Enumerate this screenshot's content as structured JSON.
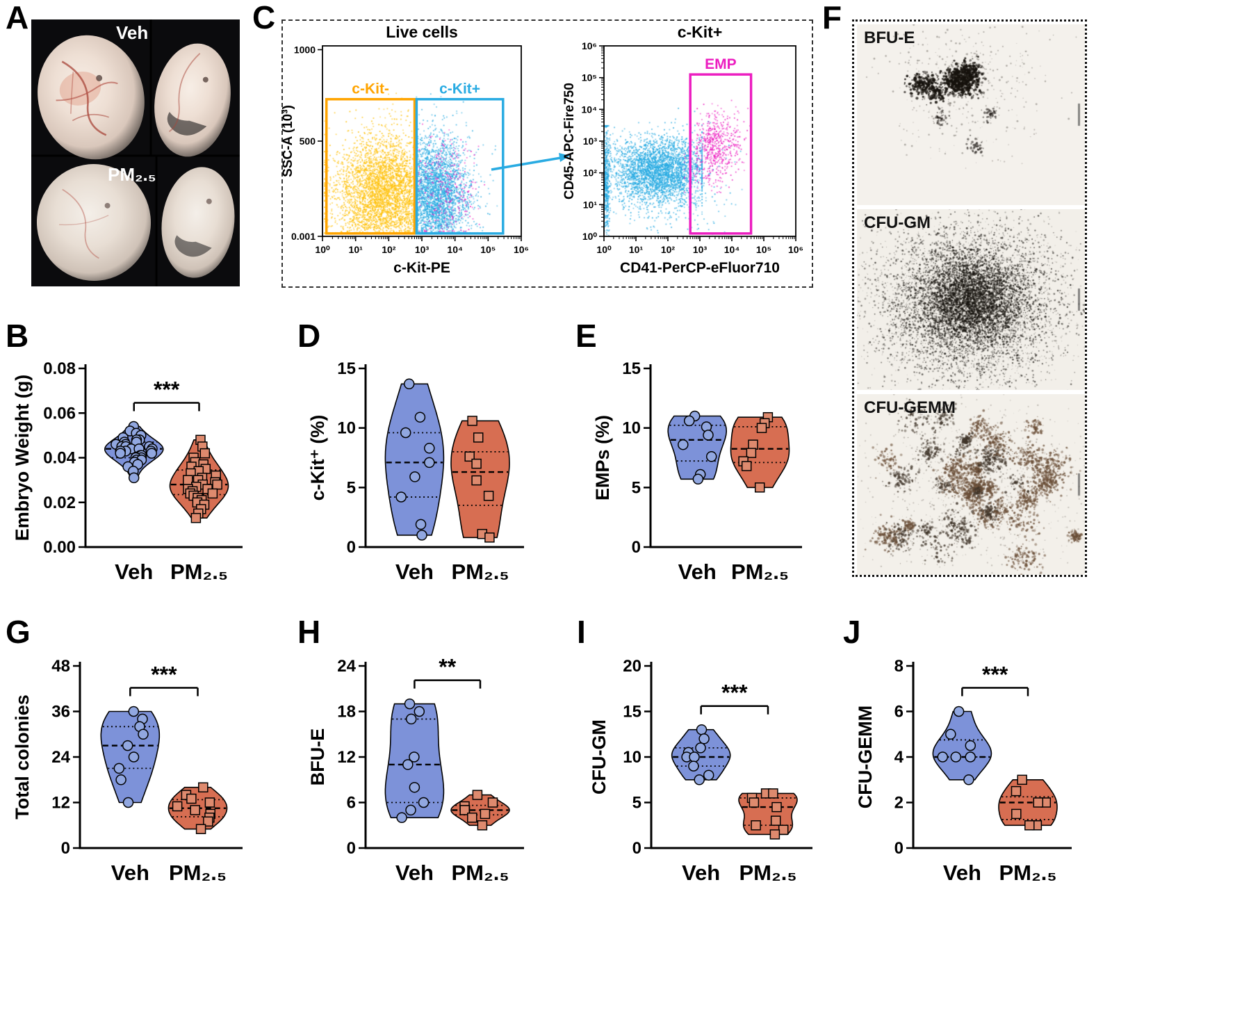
{
  "figure": {
    "background": "#ffffff"
  },
  "panels": {
    "A": {
      "label": "A",
      "veh_label": "Veh",
      "pm_label": "PM₂.₅"
    },
    "B": {
      "label": "B"
    },
    "C": {
      "label": "C",
      "arrow_color": "#29ABE2"
    },
    "D": {
      "label": "D"
    },
    "E": {
      "label": "E"
    },
    "F": {
      "label": "F",
      "images": [
        {
          "label": "BFU-E",
          "pattern": "compact-dark-clusters"
        },
        {
          "label": "CFU-GM",
          "pattern": "large-diffuse-cloud"
        },
        {
          "label": "CFU-GEMM",
          "pattern": "scattered-mixed-clusters"
        }
      ]
    },
    "G": {
      "label": "G"
    },
    "H": {
      "label": "H"
    },
    "I": {
      "label": "I"
    },
    "J": {
      "label": "J"
    }
  },
  "chart_data": [
    {
      "id": "flow-left",
      "type": "flow-scatter",
      "title": "Live cells",
      "xlabel": "c-Kit-PE",
      "ylabel": "SSC-A (10³)",
      "yscale": "frac",
      "xticks": [
        {
          "label": "10⁰",
          "f": 0
        },
        {
          "label": "10¹",
          "f": 0.1667
        },
        {
          "label": "10²",
          "f": 0.3333
        },
        {
          "label": "10³",
          "f": 0.5
        },
        {
          "label": "10⁴",
          "f": 0.6667
        },
        {
          "label": "10⁵",
          "f": 0.8333
        },
        {
          "label": "10⁶",
          "f": 1
        }
      ],
      "yticks": [
        {
          "label": "1000",
          "f": 0.02
        },
        {
          "label": "500",
          "f": 0.5
        },
        {
          "label": "0.001",
          "f": 1
        }
      ],
      "gates": [
        {
          "name": "c-Kit-",
          "color": "#FFA400",
          "x_dec": [
            0.12,
            2.78
          ],
          "y_f": [
            0.28,
            0.985
          ]
        },
        {
          "name": "c-Kit+",
          "color": "#29ABE2",
          "x_dec": [
            2.84,
            5.45
          ],
          "y_f": [
            0.28,
            0.985
          ]
        }
      ],
      "clusters": [
        {
          "color": "#FFC20E",
          "n": 4200,
          "x_mean": 1.85,
          "x_sd": 0.75,
          "x_clip": [
            0.05,
            2.8
          ],
          "y_mean": 0.22,
          "y_sd": 0.16,
          "y_clip": [
            0.02,
            0.9
          ]
        },
        {
          "color": "#29ABE2",
          "n": 3400,
          "x_mean": 3.35,
          "x_sd": 0.55,
          "x_clip": [
            2.82,
            5.6
          ],
          "y_mean": 0.22,
          "y_sd": 0.16,
          "y_clip": [
            0.02,
            0.9
          ]
        },
        {
          "color": "#EC1EC0",
          "n": 260,
          "x_mean": 3.7,
          "x_sd": 0.45,
          "x_clip": [
            2.9,
            5.2
          ],
          "y_mean": 0.25,
          "y_sd": 0.13,
          "y_clip": [
            0.03,
            0.8
          ]
        }
      ]
    },
    {
      "id": "flow-right",
      "type": "flow-scatter",
      "title": "c-Kit+",
      "xlabel": "CD41-PerCP-eFluor710",
      "ylabel": "CD45-APC-Fire750",
      "yscale": "log",
      "xticks": [
        {
          "label": "10⁰",
          "f": 0
        },
        {
          "label": "10¹",
          "f": 0.1667
        },
        {
          "label": "10²",
          "f": 0.3333
        },
        {
          "label": "10³",
          "f": 0.5
        },
        {
          "label": "10⁴",
          "f": 0.6667
        },
        {
          "label": "10⁵",
          "f": 0.8333
        },
        {
          "label": "10⁶",
          "f": 1
        }
      ],
      "yticks": [
        {
          "label": "10⁶",
          "f": 0
        },
        {
          "label": "10⁵",
          "f": 0.1667
        },
        {
          "label": "10⁴",
          "f": 0.3333
        },
        {
          "label": "10³",
          "f": 0.5
        },
        {
          "label": "10²",
          "f": 0.6667
        },
        {
          "label": "10¹",
          "f": 0.8333
        },
        {
          "label": "10⁰",
          "f": 1
        }
      ],
      "gates": [
        {
          "name": "EMP",
          "color": "#EC1EC0",
          "x_dec": [
            2.7,
            4.6
          ],
          "y_f": [
            0.15,
            0.985
          ]
        }
      ],
      "clusters": [
        {
          "color": "#29ABE2",
          "n": 3000,
          "x_mean": 1.7,
          "x_sd": 0.75,
          "x_clip": [
            0.02,
            3.05
          ],
          "y_mean": 2.1,
          "y_sd": 0.5,
          "y_clip": [
            0.6,
            3.6
          ]
        },
        {
          "color": "#29ABE2",
          "n": 420,
          "x_mean": 0.06,
          "x_sd": 0.05,
          "x_clip": [
            0,
            0.22
          ],
          "y_mean": 1.7,
          "y_sd": 1.0,
          "y_clip": [
            0,
            3.5
          ]
        },
        {
          "color": "#29ABE2",
          "n": 320,
          "x_mean": 2.1,
          "x_sd": 1.0,
          "x_clip": [
            0,
            4.3
          ],
          "y_mean": 1.5,
          "y_sd": 1.0,
          "y_clip": [
            0,
            4.2
          ]
        },
        {
          "color": "#EC1EC0",
          "n": 520,
          "x_mean": 3.55,
          "x_sd": 0.35,
          "x_clip": [
            2.9,
            4.55
          ],
          "y_mean": 2.9,
          "y_sd": 0.55,
          "y_clip": [
            1.4,
            4.3
          ]
        },
        {
          "color": "#EC1EC0",
          "n": 60,
          "x_mean": 3.05,
          "x_sd": 0.35,
          "x_clip": [
            2.5,
            3.7
          ],
          "y_mean": 2.3,
          "y_sd": 0.5,
          "y_clip": [
            1,
            3.5
          ]
        }
      ]
    },
    {
      "id": "B",
      "type": "violin",
      "ylabel": "Embryo Weight (g)",
      "ylim": [
        0,
        0.08
      ],
      "yticks": [
        0,
        0.02,
        0.04,
        0.06,
        0.08
      ],
      "ytick_labels": [
        "0.00",
        "0.02",
        "0.04",
        "0.06",
        "0.08"
      ],
      "categories": [
        "Veh",
        "PM₂.₅"
      ],
      "significance": "***",
      "series": [
        {
          "name": "Veh",
          "marker": "circle",
          "fill": "#7d92d9",
          "marker_fill": "#91a7e0",
          "values": [
            0.054,
            0.052,
            0.051,
            0.05,
            0.049,
            0.048,
            0.048,
            0.047,
            0.047,
            0.046,
            0.046,
            0.045,
            0.045,
            0.045,
            0.044,
            0.044,
            0.044,
            0.043,
            0.043,
            0.043,
            0.042,
            0.042,
            0.041,
            0.041,
            0.04,
            0.04,
            0.039,
            0.039,
            0.038,
            0.037,
            0.036,
            0.034,
            0.031
          ]
        },
        {
          "name": "PM₂.₅",
          "marker": "square",
          "fill": "#d76e52",
          "marker_fill": "#de8a6e",
          "values": [
            0.048,
            0.045,
            0.042,
            0.04,
            0.038,
            0.037,
            0.036,
            0.035,
            0.034,
            0.033,
            0.032,
            0.031,
            0.03,
            0.03,
            0.029,
            0.028,
            0.028,
            0.027,
            0.026,
            0.026,
            0.025,
            0.024,
            0.024,
            0.023,
            0.022,
            0.021,
            0.02,
            0.019,
            0.017,
            0.015,
            0.013
          ]
        }
      ]
    },
    {
      "id": "D",
      "type": "violin",
      "ylabel": "c-Kit⁺ (%)",
      "ylim": [
        0,
        15
      ],
      "yticks": [
        0,
        5,
        10,
        15
      ],
      "ytick_labels": [
        "0",
        "5",
        "10",
        "15"
      ],
      "categories": [
        "Veh",
        "PM₂.₅"
      ],
      "significance": null,
      "series": [
        {
          "name": "Veh",
          "marker": "circle",
          "fill": "#7d92d9",
          "marker_fill": "#91a7e0",
          "values": [
            13.7,
            10.9,
            9.6,
            8.3,
            7.1,
            5.9,
            4.2,
            1.9,
            1.0
          ]
        },
        {
          "name": "PM₂.₅",
          "marker": "square",
          "fill": "#d76e52",
          "marker_fill": "#de8a6e",
          "values": [
            10.6,
            9.2,
            7.6,
            7.0,
            5.6,
            4.3,
            1.1,
            0.8
          ]
        }
      ]
    },
    {
      "id": "E",
      "type": "violin",
      "ylabel": "EMPs (%)",
      "ylim": [
        0,
        15
      ],
      "yticks": [
        0,
        5,
        10,
        15
      ],
      "ytick_labels": [
        "0",
        "5",
        "10",
        "15"
      ],
      "categories": [
        "Veh",
        "PM₂.₅"
      ],
      "significance": null,
      "series": [
        {
          "name": "Veh",
          "marker": "circle",
          "fill": "#7d92d9",
          "marker_fill": "#91a7e0",
          "values": [
            11.0,
            10.6,
            10.1,
            9.4,
            8.6,
            7.6,
            6.1,
            5.7
          ]
        },
        {
          "name": "PM₂.₅",
          "marker": "square",
          "fill": "#d76e52",
          "marker_fill": "#de8a6e",
          "values": [
            10.9,
            10.4,
            10.0,
            8.6,
            7.9,
            7.2,
            6.8,
            5.0
          ]
        }
      ]
    },
    {
      "id": "G",
      "type": "violin",
      "ylabel": "Total colonies",
      "ylim": [
        0,
        48
      ],
      "yticks": [
        0,
        12,
        24,
        36,
        48
      ],
      "ytick_labels": [
        "0",
        "12",
        "24",
        "36",
        "48"
      ],
      "categories": [
        "Veh",
        "PM₂.₅"
      ],
      "significance": "***",
      "series": [
        {
          "name": "Veh",
          "marker": "circle",
          "fill": "#7d92d9",
          "marker_fill": "#91a7e0",
          "values": [
            36,
            34,
            32,
            30,
            27,
            24,
            21,
            18,
            12
          ]
        },
        {
          "name": "PM₂.₅",
          "marker": "square",
          "fill": "#d76e52",
          "marker_fill": "#de8a6e",
          "values": [
            16,
            14,
            13,
            12,
            11,
            10,
            9,
            8,
            7,
            5
          ]
        }
      ]
    },
    {
      "id": "H",
      "type": "violin",
      "ylabel": "BFU-E",
      "ylim": [
        0,
        24
      ],
      "yticks": [
        0,
        6,
        12,
        18,
        24
      ],
      "ytick_labels": [
        "0",
        "6",
        "12",
        "18",
        "24"
      ],
      "categories": [
        "Veh",
        "PM₂.₅"
      ],
      "significance": "**",
      "series": [
        {
          "name": "Veh",
          "marker": "circle",
          "fill": "#7d92d9",
          "marker_fill": "#91a7e0",
          "values": [
            19,
            18,
            17,
            12,
            11,
            8,
            6,
            5,
            4
          ]
        },
        {
          "name": "PM₂.₅",
          "marker": "square",
          "fill": "#d76e52",
          "marker_fill": "#de8a6e",
          "values": [
            7,
            6,
            5.5,
            5,
            5,
            4.5,
            4,
            3
          ]
        }
      ]
    },
    {
      "id": "I",
      "type": "violin",
      "ylabel": "CFU-GM",
      "ylim": [
        0,
        20
      ],
      "yticks": [
        0,
        5,
        10,
        15,
        20
      ],
      "ytick_labels": [
        "0",
        "5",
        "10",
        "15",
        "20"
      ],
      "categories": [
        "Veh",
        "PM₂.₅"
      ],
      "significance": "***",
      "series": [
        {
          "name": "Veh",
          "marker": "circle",
          "fill": "#7d92d9",
          "marker_fill": "#91a7e0",
          "values": [
            13,
            12,
            11,
            10.5,
            10,
            10,
            9,
            8,
            7.5
          ]
        },
        {
          "name": "PM₂.₅",
          "marker": "square",
          "fill": "#d76e52",
          "marker_fill": "#de8a6e",
          "values": [
            6,
            6,
            5.5,
            5,
            4.5,
            3,
            2.5,
            2,
            1.5
          ]
        }
      ]
    },
    {
      "id": "J",
      "type": "violin",
      "ylabel": "CFU-GEMM",
      "ylim": [
        0,
        8
      ],
      "yticks": [
        0,
        2,
        4,
        6,
        8
      ],
      "ytick_labels": [
        "0",
        "2",
        "4",
        "6",
        "8"
      ],
      "categories": [
        "Veh",
        "PM₂.₅"
      ],
      "significance": "***",
      "series": [
        {
          "name": "Veh",
          "marker": "circle",
          "fill": "#7d92d9",
          "marker_fill": "#91a7e0",
          "values": [
            6,
            5,
            4.5,
            4,
            4,
            4,
            3
          ]
        },
        {
          "name": "PM₂.₅",
          "marker": "square",
          "fill": "#d76e52",
          "marker_fill": "#de8a6e",
          "values": [
            3,
            2.5,
            2,
            2,
            1.5,
            1,
            1
          ]
        }
      ]
    }
  ]
}
